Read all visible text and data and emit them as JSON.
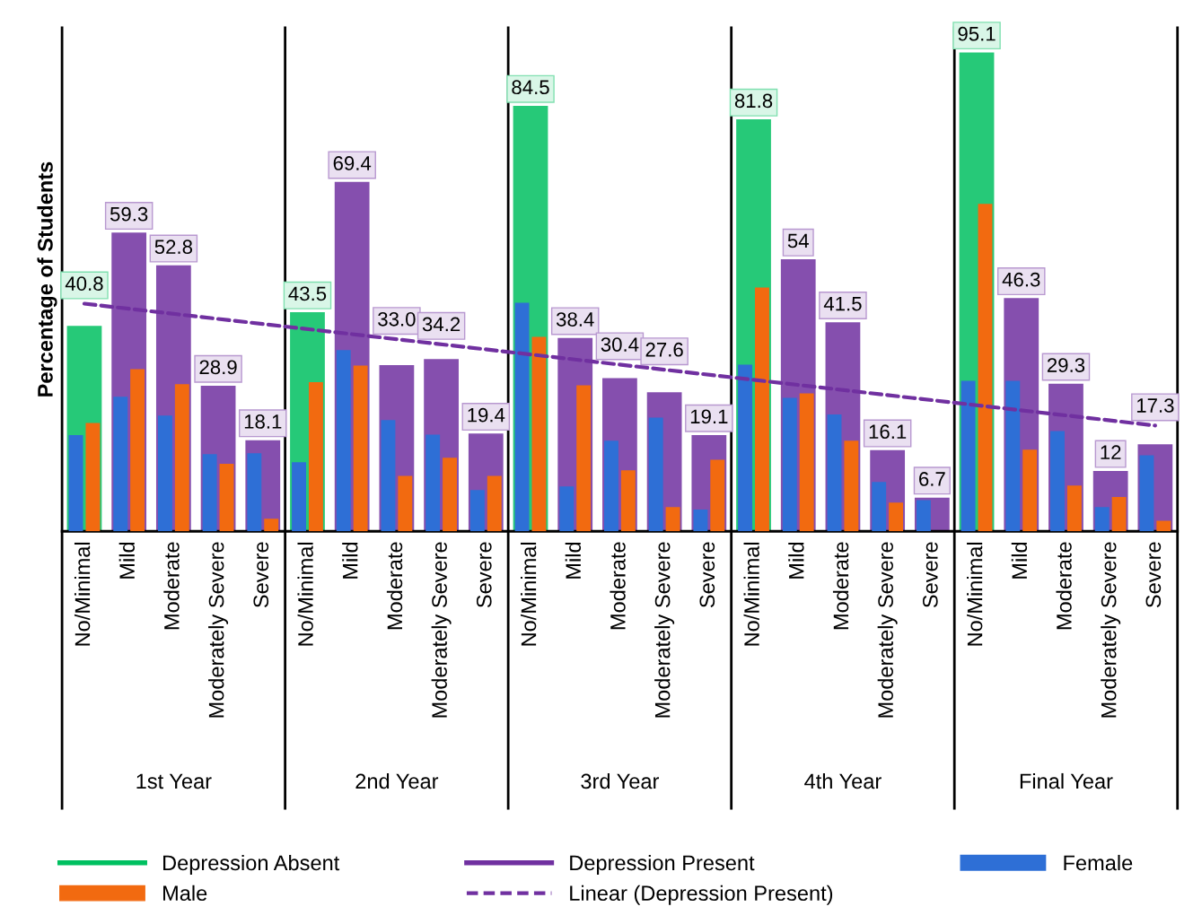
{
  "chart_data": {
    "type": "bar",
    "ylabel": "Percentage of Students",
    "categories": [
      "No/Minimal",
      "Mild",
      "Moderate",
      "Moderately Severe",
      "Severe",
      "No/Minimal",
      "Mild",
      "Moderate",
      "Moderately Severe",
      "Severe",
      "No/Minimal",
      "Mild",
      "Moderate",
      "Moderately Severe",
      "Severe",
      "No/Minimal",
      "Mild",
      "Moderate",
      "Moderately Severe",
      "Severe",
      "No/Minimal",
      "Mild",
      "Moderate",
      "Moderately Severe",
      "Severe"
    ],
    "annotations": [
      "1st Year",
      "2nd Year",
      "3rd Year",
      "4th Year",
      "Final Year"
    ],
    "ylim": [
      0,
      100
    ],
    "tick_labels": "x",
    "legend": "bottom",
    "series": [
      {
        "name": "Depression Absent",
        "color": "#00c060",
        "values": [
          40.8,
          null,
          null,
          null,
          null,
          43.5,
          null,
          null,
          null,
          null,
          84.5,
          null,
          null,
          null,
          null,
          81.8,
          null,
          null,
          null,
          null,
          95.1,
          null,
          null,
          null,
          null
        ],
        "value_labels": [
          "40.8",
          null,
          null,
          null,
          null,
          "43.5",
          null,
          null,
          null,
          null,
          "84.5",
          null,
          null,
          null,
          null,
          "81.8",
          null,
          null,
          null,
          null,
          "95.1",
          null,
          null,
          null,
          null
        ]
      },
      {
        "name": "Depression Present",
        "color": "#7030a0",
        "values": [
          null,
          59.3,
          52.8,
          28.9,
          18.1,
          null,
          69.4,
          33.0,
          34.2,
          19.4,
          null,
          38.4,
          30.4,
          27.6,
          19.1,
          null,
          54,
          41.5,
          16.1,
          6.7,
          null,
          46.3,
          29.3,
          12,
          17.3
        ],
        "value_labels": [
          null,
          "59.3",
          "52.8",
          "28.9",
          "18.1",
          null,
          "69.4",
          "33.0",
          "34.2",
          "19.4",
          null,
          "38.4",
          "30.4",
          "27.6",
          "19.1",
          null,
          "54",
          "41.5",
          "16.1",
          "6.7",
          null,
          "46.3",
          "29.3",
          "12",
          "17.3"
        ]
      },
      {
        "name": "Female",
        "color": "#2e6fd6",
        "values": [
          19.1,
          26.7,
          23.0,
          15.3,
          15.5,
          13.7,
          36.0,
          22.1,
          19.2,
          8.2,
          45.4,
          8.9,
          18.0,
          22.6,
          4.3,
          33.1,
          26.5,
          23.2,
          9.8,
          6.2,
          29.9,
          29.9,
          19.9,
          4.8,
          15.1
        ]
      },
      {
        "name": "Male",
        "color": "#f26a10",
        "values": [
          21.5,
          32.2,
          29.2,
          13.4,
          2.5,
          29.6,
          32.9,
          11.0,
          14.6,
          11.0,
          38.6,
          29.0,
          12.1,
          4.8,
          14.2,
          48.4,
          27.4,
          18.0,
          5.7,
          null,
          65.0,
          16.2,
          9.1,
          6.8,
          2.1
        ]
      },
      {
        "name": "Linear (Depression Present)",
        "type": "line",
        "color": "#7030a0",
        "line_style": "dashed",
        "values": [
          45.2,
          null,
          null,
          null,
          null,
          null,
          null,
          null,
          null,
          null,
          null,
          null,
          null,
          null,
          null,
          null,
          null,
          null,
          null,
          null,
          null,
          null,
          null,
          null,
          21.0
        ]
      }
    ]
  }
}
